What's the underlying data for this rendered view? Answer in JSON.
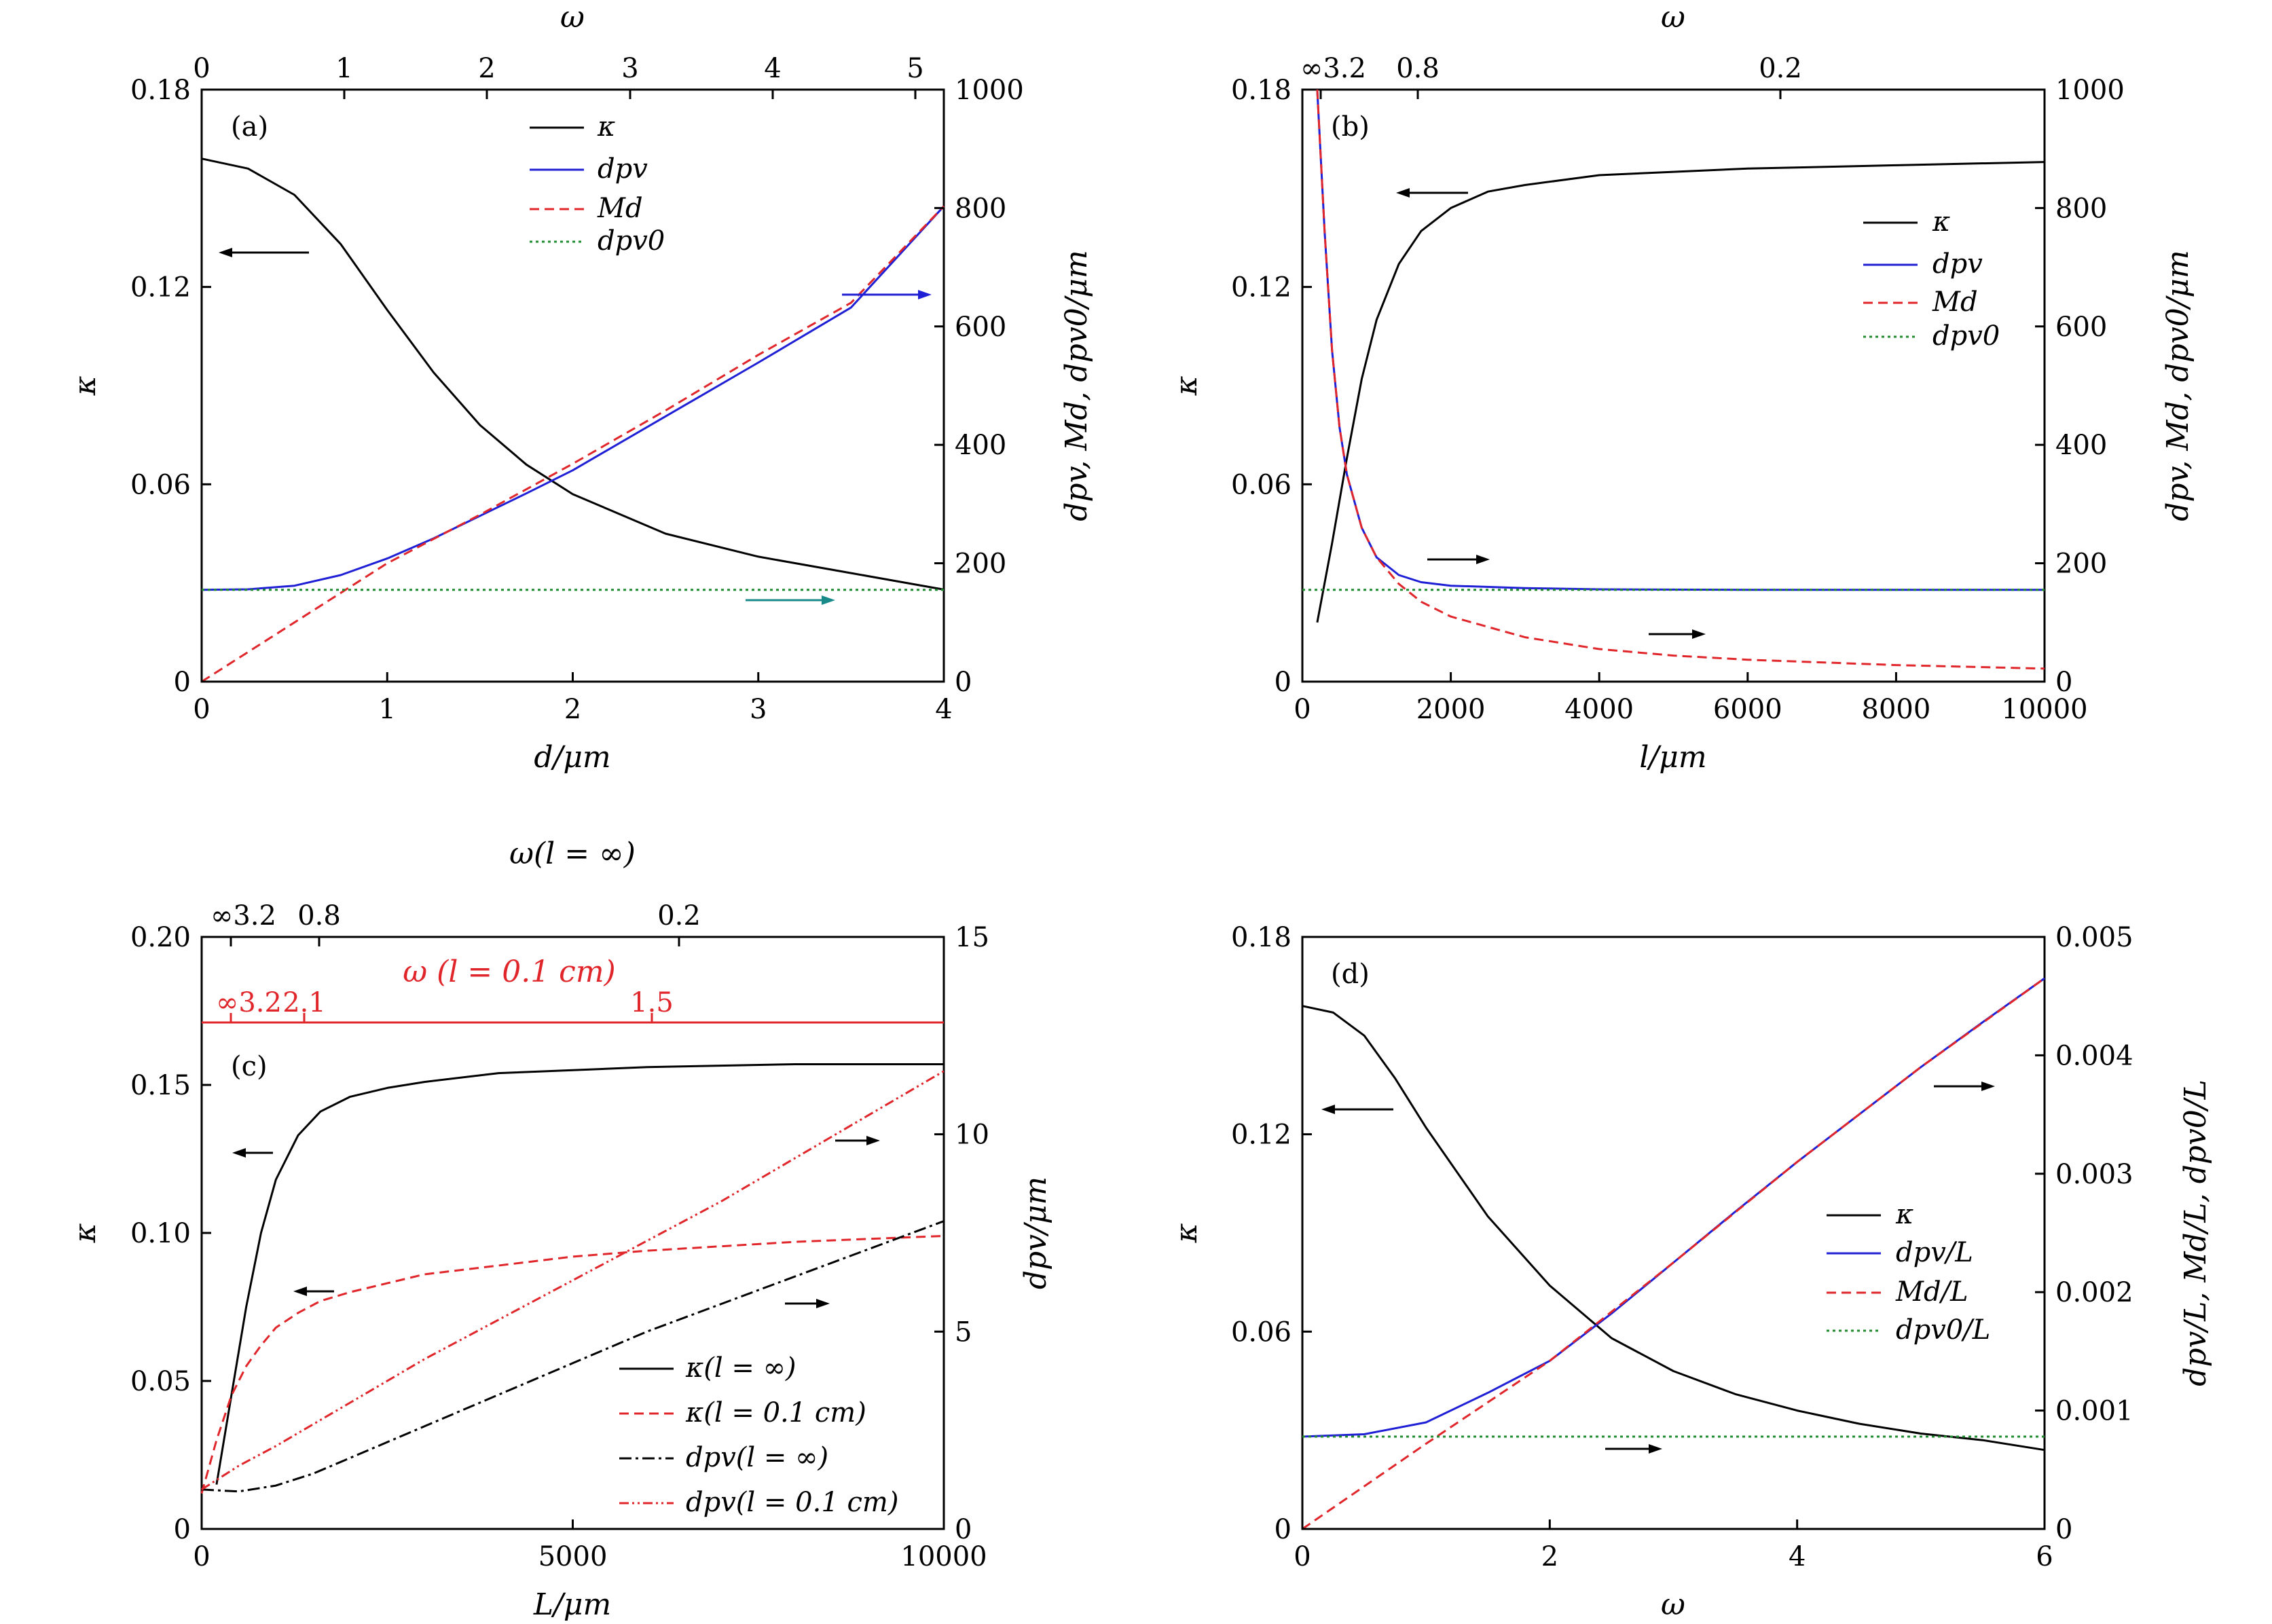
{
  "colors": {
    "kappa": "#000000",
    "dpv": "#1f1fd6",
    "Md": "#e0262a",
    "dpv0": "#1f8a2e",
    "teal_arrow": "#188a8a",
    "red_axis": "#e0262a"
  },
  "chart_data": [
    {
      "type": "line",
      "panel_label": "(a)",
      "xlabel": "d/μm",
      "ylabel_left": "κ",
      "ylabel_right": "dpv, Md, dpv0/μm",
      "top_axis_label": "ω",
      "xlim": [
        0,
        4
      ],
      "ylim_left": [
        0,
        0.18
      ],
      "ylim_right": [
        0,
        1000
      ],
      "x_ticks": [
        "0",
        "1",
        "2",
        "3",
        "4"
      ],
      "y_left_ticks": [
        "0",
        "0.06",
        "0.12",
        "0.18"
      ],
      "y_right_ticks": [
        "0",
        "200",
        "400",
        "600",
        "800",
        "1000"
      ],
      "top_ticks": [
        "0",
        "1",
        "2",
        "3",
        "4",
        "5"
      ],
      "legend_position": "top-center",
      "series": [
        {
          "name": "κ",
          "axis": "left",
          "style": "solid",
          "color": "kappa",
          "x": [
            0,
            0.25,
            0.5,
            0.75,
            1.0,
            1.25,
            1.5,
            1.75,
            2.0,
            2.5,
            3.0,
            3.5,
            4.0
          ],
          "y": [
            0.159,
            0.156,
            0.148,
            0.133,
            0.113,
            0.094,
            0.078,
            0.066,
            0.057,
            0.045,
            0.038,
            0.033,
            0.028
          ]
        },
        {
          "name": "dpv",
          "axis": "right",
          "style": "solid",
          "color": "dpv",
          "x": [
            0,
            0.25,
            0.5,
            0.75,
            1.0,
            1.25,
            1.5,
            1.75,
            2.0,
            2.5,
            3.0,
            3.5,
            4.0
          ],
          "y": [
            155,
            156,
            162,
            180,
            208,
            242,
            280,
            318,
            357,
            448,
            539,
            632,
            803
          ]
        },
        {
          "name": "Md",
          "axis": "right",
          "style": "dashed",
          "color": "Md",
          "x": [
            0,
            0.5,
            1.0,
            1.5,
            2.0,
            2.5,
            3.0,
            3.5,
            4.0
          ],
          "y": [
            0,
            100,
            200,
            282,
            368,
            458,
            552,
            640,
            803
          ]
        },
        {
          "name": "dpv0",
          "axis": "right",
          "style": "dotted",
          "color": "dpv0",
          "x": [
            0,
            4
          ],
          "y": [
            155,
            155
          ]
        }
      ]
    },
    {
      "type": "line",
      "panel_label": "(b)",
      "xlabel": "l/μm",
      "ylabel_left": "κ",
      "ylabel_right": "dpv, Md, dpv0/μm",
      "top_axis_label": "ω",
      "xlim": [
        0,
        10000
      ],
      "ylim_left": [
        0,
        0.18
      ],
      "ylim_right": [
        0,
        1000
      ],
      "x_ticks": [
        "0",
        "2000",
        "4000",
        "6000",
        "8000",
        "10000"
      ],
      "y_left_ticks": [
        "0",
        "0.06",
        "0.12",
        "0.18"
      ],
      "y_right_ticks": [
        "0",
        "200",
        "400",
        "600",
        "800",
        "1000"
      ],
      "top_ticks": [
        "∞3.2",
        "0.8",
        "0.2"
      ],
      "legend_position": "right",
      "series": [
        {
          "name": "κ",
          "axis": "left",
          "style": "solid",
          "color": "kappa",
          "x": [
            200,
            400,
            600,
            800,
            1000,
            1300,
            1600,
            2000,
            2500,
            3000,
            4000,
            5000,
            6000,
            8000,
            10000
          ],
          "y": [
            0.018,
            0.042,
            0.068,
            0.092,
            0.11,
            0.127,
            0.137,
            0.144,
            0.149,
            0.151,
            0.154,
            0.155,
            0.156,
            0.157,
            0.158
          ]
        },
        {
          "name": "dpv",
          "axis": "right",
          "style": "solid",
          "color": "dpv",
          "x": [
            200,
            300,
            400,
            500,
            600,
            800,
            1000,
            1300,
            1600,
            2000,
            3000,
            4000,
            6000,
            8000,
            10000
          ],
          "y": [
            1000,
            760,
            560,
            430,
            350,
            260,
            210,
            180,
            168,
            162,
            158,
            156,
            155,
            155,
            155
          ]
        },
        {
          "name": "Md",
          "axis": "right",
          "style": "dashed",
          "color": "Md",
          "x": [
            200,
            300,
            400,
            500,
            600,
            800,
            1000,
            1300,
            1600,
            2000,
            3000,
            4000,
            5000,
            6000,
            8000,
            10000
          ],
          "y": [
            1000,
            760,
            560,
            430,
            350,
            260,
            210,
            165,
            135,
            110,
            75,
            55,
            44,
            37,
            28,
            22
          ]
        },
        {
          "name": "dpv0",
          "axis": "right",
          "style": "dotted",
          "color": "dpv0",
          "x": [
            0,
            10000
          ],
          "y": [
            155,
            155
          ]
        }
      ]
    },
    {
      "type": "line",
      "panel_label": "(c)",
      "xlabel": "L/μm",
      "ylabel_left": "κ",
      "ylabel_right": "dpv/μm",
      "top_axis_label": "ω(l = ∞)",
      "inner_axis_label": "ω (l = 0.1 cm)",
      "xlim": [
        0,
        10000
      ],
      "ylim_left": [
        0,
        0.2
      ],
      "ylim_right": [
        0,
        15
      ],
      "x_ticks": [
        "0",
        "5000",
        "10000"
      ],
      "y_left_ticks": [
        "0",
        "0.05",
        "0.10",
        "0.15",
        "0.20"
      ],
      "y_right_ticks": [
        "0",
        "5",
        "10",
        "15"
      ],
      "top_ticks": [
        "∞3.2",
        "0.8",
        "0.2"
      ],
      "inner_ticks": [
        "∞3.2",
        "2.1",
        "1.5"
      ],
      "legend_position": "bottom-right",
      "series": [
        {
          "name": "κ(l = ∞)",
          "axis": "left",
          "style": "solid",
          "color": "kappa",
          "x": [
            200,
            400,
            600,
            800,
            1000,
            1300,
            1600,
            2000,
            2500,
            3000,
            4000,
            5000,
            6000,
            8000,
            10000
          ],
          "y": [
            0.015,
            0.045,
            0.075,
            0.1,
            0.118,
            0.133,
            0.141,
            0.146,
            0.149,
            0.151,
            0.154,
            0.155,
            0.156,
            0.157,
            0.157
          ]
        },
        {
          "name": "κ(l = 0.1 cm)",
          "axis": "left",
          "style": "dashed",
          "color": "Md",
          "x": [
            0,
            200,
            400,
            600,
            800,
            1000,
            1300,
            1600,
            2000,
            2500,
            3000,
            4000,
            5000,
            6000,
            8000,
            10000
          ],
          "y": [
            0.012,
            0.03,
            0.045,
            0.055,
            0.062,
            0.068,
            0.073,
            0.077,
            0.08,
            0.083,
            0.086,
            0.089,
            0.092,
            0.094,
            0.097,
            0.099
          ]
        },
        {
          "name": "dpv(l = ∞)",
          "axis": "right",
          "style": "dashdot",
          "color": "kappa",
          "x": [
            0,
            500,
            1000,
            1500,
            2000,
            3000,
            4000,
            5000,
            6000,
            7000,
            8000,
            9000,
            10000
          ],
          "y": [
            1.0,
            0.95,
            1.1,
            1.4,
            1.8,
            2.6,
            3.4,
            4.2,
            5.0,
            5.7,
            6.4,
            7.1,
            7.8
          ]
        },
        {
          "name": "dpv(l = 0.1 cm)",
          "axis": "right",
          "style": "dashdotdot",
          "color": "Md",
          "x": [
            0,
            500,
            1000,
            2000,
            3000,
            4000,
            5000,
            6000,
            7000,
            8000,
            9000,
            10000
          ],
          "y": [
            1.0,
            1.6,
            2.1,
            3.2,
            4.3,
            5.3,
            6.3,
            7.3,
            8.3,
            9.4,
            10.5,
            11.6
          ]
        }
      ]
    },
    {
      "type": "line",
      "panel_label": "(d)",
      "xlabel": "ω",
      "ylabel_left": "κ",
      "ylabel_right": "dpv/L, Md/L, dpv0/L",
      "xlim": [
        0,
        6
      ],
      "ylim_left": [
        0,
        0.18
      ],
      "ylim_right": [
        0,
        0.005
      ],
      "x_ticks": [
        "0",
        "2",
        "4",
        "6"
      ],
      "y_left_ticks": [
        "0",
        "0.06",
        "0.12",
        "0.18"
      ],
      "y_right_ticks": [
        "0",
        "0.001",
        "0.002",
        "0.003",
        "0.004",
        "0.005"
      ],
      "legend_position": "right",
      "series": [
        {
          "name": "κ",
          "axis": "left",
          "style": "solid",
          "color": "kappa",
          "x": [
            0,
            0.25,
            0.5,
            0.75,
            1.0,
            1.5,
            2.0,
            2.5,
            3.0,
            3.5,
            4.0,
            4.5,
            5.0,
            5.5,
            6.0
          ],
          "y": [
            0.159,
            0.157,
            0.15,
            0.137,
            0.122,
            0.095,
            0.074,
            0.058,
            0.048,
            0.041,
            0.036,
            0.032,
            0.029,
            0.027,
            0.024
          ]
        },
        {
          "name": "dpv/L",
          "axis": "right",
          "style": "solid",
          "color": "dpv",
          "x": [
            0,
            0.5,
            1.0,
            1.5,
            2.0,
            2.5,
            3.0,
            3.5,
            4.0,
            4.5,
            5.0,
            5.5,
            6.0
          ],
          "y": [
            0.00078,
            0.0008,
            0.0009,
            0.00115,
            0.00142,
            0.00182,
            0.00225,
            0.00268,
            0.0031,
            0.0035,
            0.0039,
            0.00428,
            0.00465
          ]
        },
        {
          "name": "Md/L",
          "axis": "right",
          "style": "dashed",
          "color": "Md",
          "x": [
            0,
            1,
            2,
            3,
            4,
            5,
            6
          ],
          "y": [
            0,
            0.00072,
            0.00142,
            0.00225,
            0.0031,
            0.0039,
            0.00465
          ]
        },
        {
          "name": "dpv0/L",
          "axis": "right",
          "style": "dotted",
          "color": "dpv0",
          "x": [
            0,
            6
          ],
          "y": [
            0.00078,
            0.00078
          ]
        }
      ]
    }
  ]
}
